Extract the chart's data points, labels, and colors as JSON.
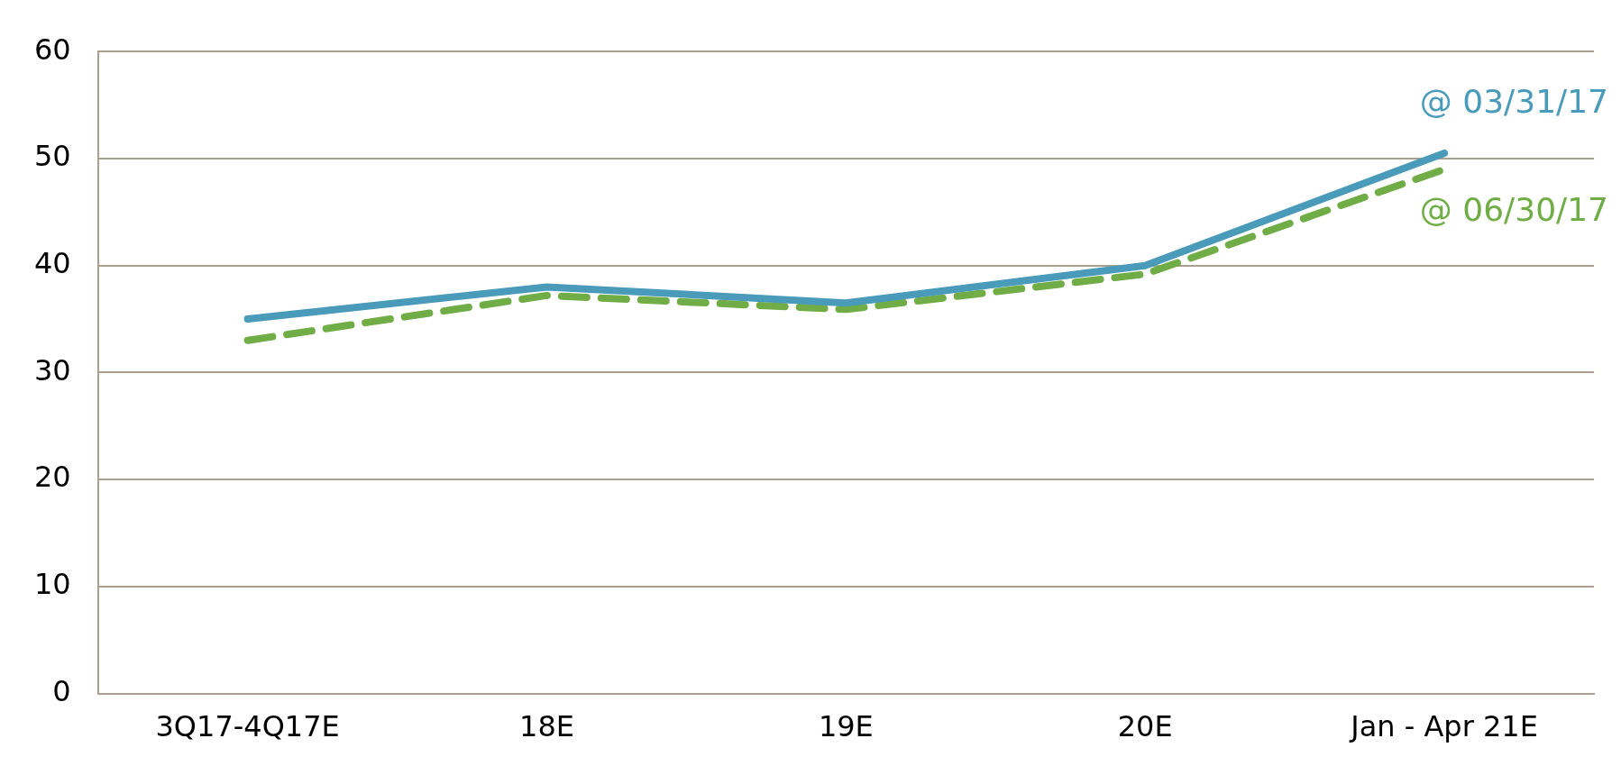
{
  "chart_data": {
    "type": "line",
    "categories": [
      "3Q17-4Q17E",
      "18E",
      "19E",
      "20E",
      "Jan - Apr 21E"
    ],
    "series": [
      {
        "name": "@ 03/31/17",
        "color": "#4a9aba",
        "values": [
          35,
          38,
          36.5,
          40,
          50.5
        ]
      },
      {
        "name": "@ 06/30/17",
        "color": "#70ad47",
        "values": [
          33,
          37.2,
          35.9,
          39.2,
          49
        ],
        "line_style": "dashed"
      }
    ],
    "ylim": [
      0,
      60
    ],
    "yticks": [
      0,
      10,
      20,
      30,
      40,
      50,
      60
    ],
    "grid": "y",
    "marker": "none"
  }
}
